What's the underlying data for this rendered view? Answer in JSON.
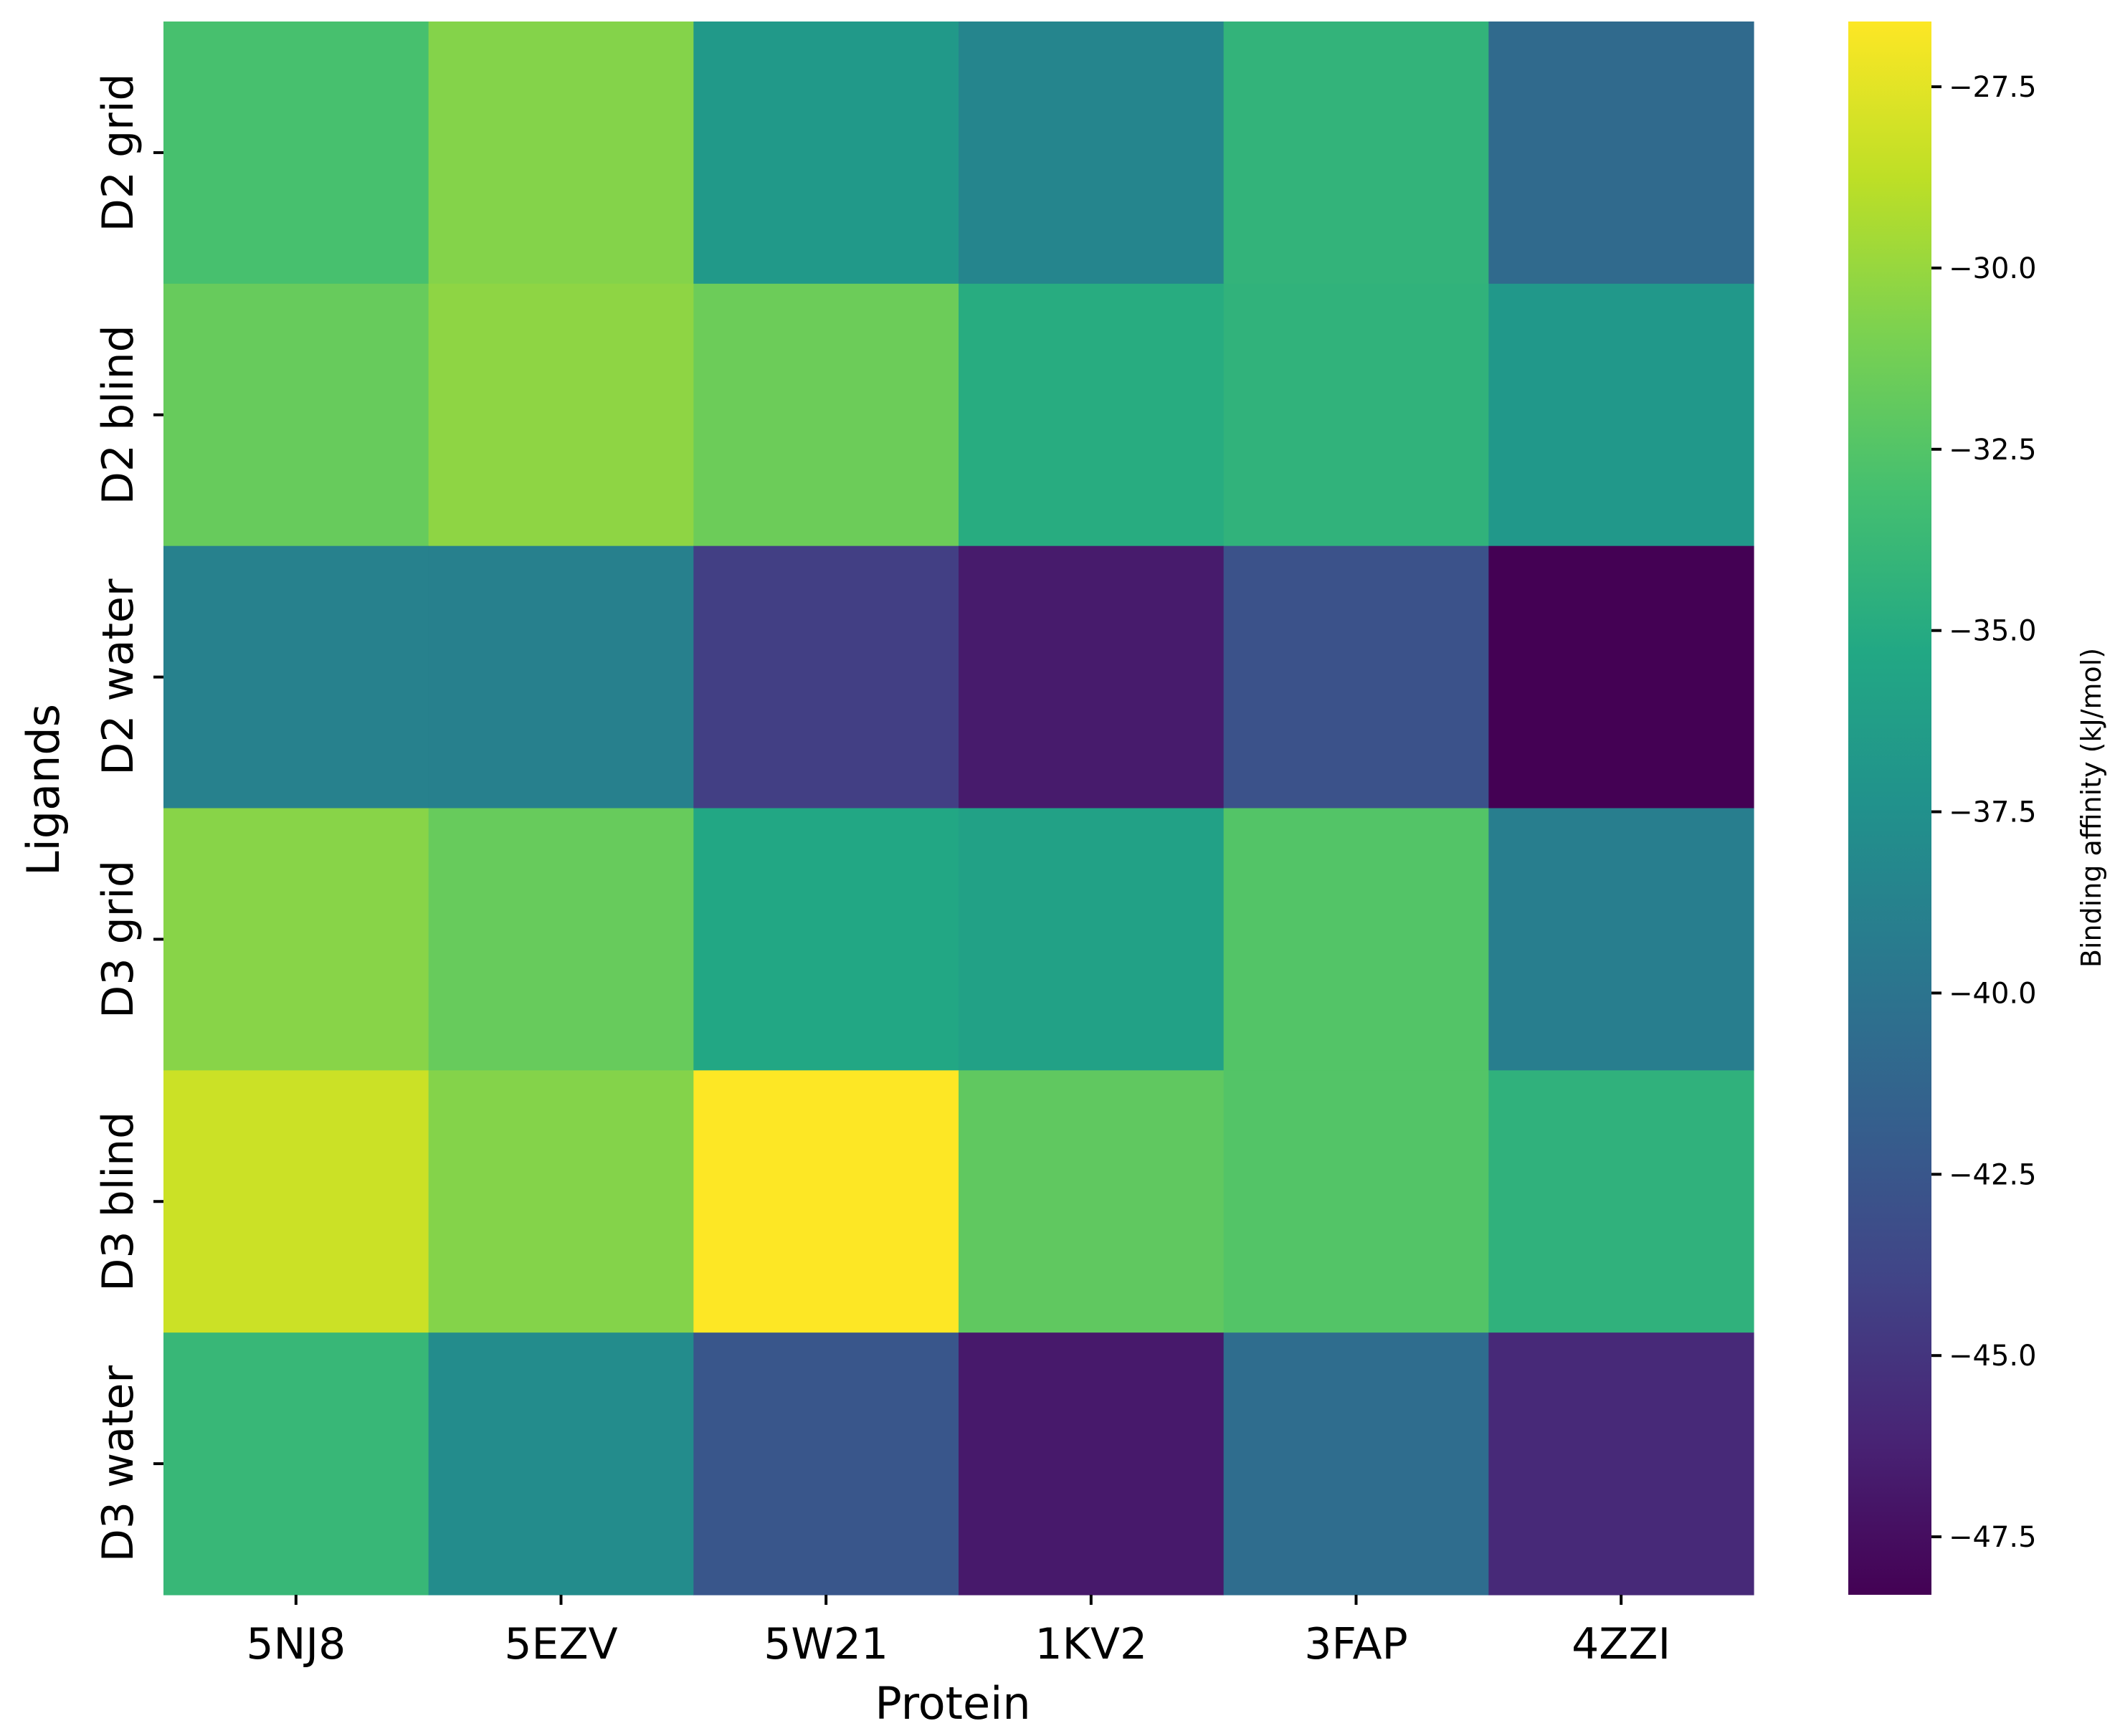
{
  "chart_data": {
    "type": "heatmap",
    "xlabel": "Protein",
    "ylabel": "Ligands",
    "x_categories": [
      "5NJ8",
      "5EZV",
      "5W21",
      "1KV2",
      "3FAP",
      "4ZZI"
    ],
    "y_categories": [
      "D2 grid",
      "D2 blind",
      "D2 water",
      "D3 grid",
      "D3 blind",
      "D3 water"
    ],
    "values": [
      [
        -33.0,
        -30.6,
        -36.7,
        -38.5,
        -34.2,
        -40.8
      ],
      [
        -31.7,
        -30.3,
        -31.5,
        -34.9,
        -34.3,
        -36.8
      ],
      [
        -38.8,
        -38.9,
        -44.3,
        -46.7,
        -42.8,
        -48.3
      ],
      [
        -30.5,
        -31.7,
        -35.4,
        -35.9,
        -32.5,
        -39.1
      ],
      [
        -28.3,
        -30.6,
        -26.6,
        -32.0,
        -32.5,
        -34.4
      ],
      [
        -33.9,
        -37.9,
        -42.5,
        -46.8,
        -40.6,
        -45.8
      ]
    ],
    "colorbar": {
      "label": "Binding affinity (kJ/mol)",
      "vmin": -48.3,
      "vmax": -26.6,
      "colormap": "viridis",
      "ticks": [
        -27.5,
        -30.0,
        -32.5,
        -35.0,
        -37.5,
        -40.0,
        -42.5,
        -45.0,
        -47.5
      ],
      "tick_labels": [
        "−27.5",
        "−30.0",
        "−32.5",
        "−35.0",
        "−37.5",
        "−40.0",
        "−42.5",
        "−45.0",
        "−47.5"
      ]
    }
  }
}
